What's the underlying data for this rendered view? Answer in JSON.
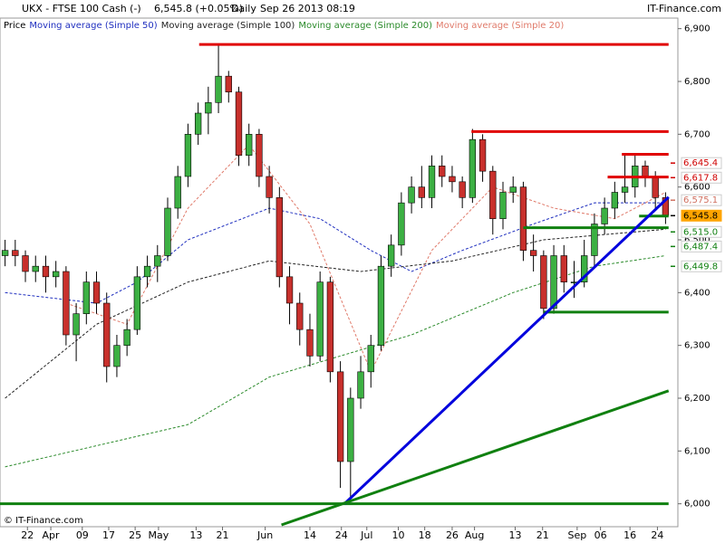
{
  "chart_data": {
    "type": "candlestick",
    "header": {
      "symbol": "UKX - FTSE 100 Cash (-)",
      "price": "6,545.8 (+0.05%)",
      "period": "Daily",
      "date": "Sep 26 2013 08:19",
      "brand": "IT-Finance.com"
    },
    "footer": "© IT-Finance.com",
    "price_name": "Price",
    "up_color": "#3cb043",
    "down_color": "#c8302c",
    "xlim": [
      -0.5,
      65.5
    ],
    "ylim": [
      5960,
      6920
    ],
    "yticks": [
      {
        "value": 6900,
        "label": "6,900"
      },
      {
        "value": 6800,
        "label": "6,800"
      },
      {
        "value": 6700,
        "label": "6,700"
      },
      {
        "value": 6600,
        "label": "6,600"
      },
      {
        "value": 6500,
        "label": "6,500"
      },
      {
        "value": 6400,
        "label": "6,400"
      },
      {
        "value": 6300,
        "label": "6,300"
      },
      {
        "value": 6200,
        "label": "6,200"
      },
      {
        "value": 6100,
        "label": "6,100"
      },
      {
        "value": 6000,
        "label": "6,000"
      }
    ],
    "xticks": [
      {
        "value": 2.2,
        "label": "22"
      },
      {
        "value": 4.5,
        "label": "Apr"
      },
      {
        "value": 7.6,
        "label": "09"
      },
      {
        "value": 10.2,
        "label": "17"
      },
      {
        "value": 12.8,
        "label": "25"
      },
      {
        "value": 15.1,
        "label": "May"
      },
      {
        "value": 18.8,
        "label": "13"
      },
      {
        "value": 21.4,
        "label": "21"
      },
      {
        "value": 25.6,
        "label": "Jun"
      },
      {
        "value": 30,
        "label": "14"
      },
      {
        "value": 33.1,
        "label": "24"
      },
      {
        "value": 35.6,
        "label": "Jul"
      },
      {
        "value": 38.7,
        "label": "10"
      },
      {
        "value": 41.3,
        "label": "18"
      },
      {
        "value": 44,
        "label": "26"
      },
      {
        "value": 46.2,
        "label": "Aug"
      },
      {
        "value": 50.2,
        "label": "13"
      },
      {
        "value": 52.9,
        "label": "21"
      },
      {
        "value": 56.3,
        "label": "Sep"
      },
      {
        "value": 58.6,
        "label": "06"
      },
      {
        "value": 61.5,
        "label": "16"
      },
      {
        "value": 64.2,
        "label": "24"
      }
    ],
    "candles": [
      [
        6470,
        6500,
        6450,
        6480
      ],
      [
        6480,
        6500,
        6450,
        6470
      ],
      [
        6470,
        6480,
        6420,
        6440
      ],
      [
        6440,
        6470,
        6420,
        6450
      ],
      [
        6450,
        6470,
        6400,
        6430
      ],
      [
        6430,
        6460,
        6410,
        6440
      ],
      [
        6440,
        6450,
        6300,
        6320
      ],
      [
        6320,
        6380,
        6270,
        6360
      ],
      [
        6360,
        6440,
        6340,
        6420
      ],
      [
        6420,
        6440,
        6360,
        6380
      ],
      [
        6380,
        6400,
        6230,
        6260
      ],
      [
        6260,
        6320,
        6240,
        6300
      ],
      [
        6300,
        6350,
        6280,
        6330
      ],
      [
        6330,
        6450,
        6320,
        6430
      ],
      [
        6430,
        6470,
        6410,
        6450
      ],
      [
        6450,
        6490,
        6420,
        6470
      ],
      [
        6470,
        6580,
        6460,
        6560
      ],
      [
        6560,
        6640,
        6540,
        6620
      ],
      [
        6620,
        6720,
        6600,
        6700
      ],
      [
        6700,
        6760,
        6680,
        6740
      ],
      [
        6740,
        6790,
        6700,
        6760
      ],
      [
        6760,
        6870,
        6740,
        6810
      ],
      [
        6810,
        6820,
        6760,
        6780
      ],
      [
        6780,
        6790,
        6640,
        6660
      ],
      [
        6660,
        6720,
        6640,
        6700
      ],
      [
        6700,
        6710,
        6600,
        6620
      ],
      [
        6620,
        6640,
        6550,
        6580
      ],
      [
        6580,
        6600,
        6410,
        6430
      ],
      [
        6430,
        6450,
        6340,
        6380
      ],
      [
        6380,
        6400,
        6300,
        6330
      ],
      [
        6330,
        6360,
        6260,
        6280
      ],
      [
        6280,
        6440,
        6270,
        6420
      ],
      [
        6420,
        6430,
        6230,
        6250
      ],
      [
        6250,
        6270,
        6030,
        6080
      ],
      [
        6080,
        6220,
        6010,
        6200
      ],
      [
        6200,
        6280,
        6180,
        6250
      ],
      [
        6250,
        6320,
        6220,
        6300
      ],
      [
        6300,
        6470,
        6290,
        6450
      ],
      [
        6450,
        6510,
        6430,
        6490
      ],
      [
        6490,
        6590,
        6470,
        6570
      ],
      [
        6570,
        6620,
        6550,
        6600
      ],
      [
        6600,
        6640,
        6560,
        6580
      ],
      [
        6580,
        6660,
        6560,
        6640
      ],
      [
        6640,
        6660,
        6600,
        6620
      ],
      [
        6620,
        6640,
        6590,
        6610
      ],
      [
        6610,
        6620,
        6560,
        6580
      ],
      [
        6580,
        6710,
        6570,
        6690
      ],
      [
        6690,
        6700,
        6610,
        6630
      ],
      [
        6630,
        6640,
        6510,
        6540
      ],
      [
        6540,
        6610,
        6520,
        6590
      ],
      [
        6590,
        6620,
        6570,
        6600
      ],
      [
        6600,
        6610,
        6460,
        6480
      ],
      [
        6480,
        6510,
        6440,
        6470
      ],
      [
        6470,
        6480,
        6350,
        6370
      ],
      [
        6370,
        6490,
        6360,
        6470
      ],
      [
        6470,
        6490,
        6400,
        6420
      ],
      [
        6420,
        6460,
        6390,
        6420
      ],
      [
        6420,
        6500,
        6410,
        6470
      ],
      [
        6470,
        6550,
        6450,
        6530
      ],
      [
        6530,
        6580,
        6510,
        6560
      ],
      [
        6560,
        6610,
        6540,
        6590
      ],
      [
        6590,
        6660,
        6570,
        6600
      ],
      [
        6600,
        6660,
        6580,
        6640
      ],
      [
        6640,
        6650,
        6600,
        6620
      ],
      [
        6620,
        6630,
        6560,
        6580
      ],
      [
        6580,
        6590,
        6530,
        6546
      ]
    ],
    "moving_averages": [
      {
        "name": "Moving average (Simple 50)",
        "color": "#1f2fbf",
        "x": [
          0,
          9,
          13,
          18,
          26,
          31,
          36,
          40,
          45,
          52,
          58,
          65
        ],
        "values": [
          6400,
          6380,
          6420,
          6500,
          6560,
          6540,
          6480,
          6440,
          6480,
          6530,
          6570,
          6570
        ]
      },
      {
        "name": "Moving average (Simple 100)",
        "color": "#222222",
        "x": [
          0,
          9,
          18,
          26,
          35,
          44,
          53,
          65
        ],
        "values": [
          6200,
          6340,
          6420,
          6460,
          6440,
          6460,
          6500,
          6520
        ]
      },
      {
        "name": "Moving average (Simple 200)",
        "color": "#2a8a2a",
        "x": [
          0,
          18,
          26,
          40,
          50,
          58,
          65
        ],
        "values": [
          6070,
          6150,
          6240,
          6320,
          6400,
          6450,
          6470
        ]
      },
      {
        "name": "Moving average (Simple 20)",
        "color": "#e07a6a",
        "x": [
          6,
          12,
          18,
          24,
          30,
          36,
          42,
          48,
          54,
          60,
          65
        ],
        "values": [
          6380,
          6340,
          6560,
          6680,
          6530,
          6250,
          6480,
          6600,
          6560,
          6540,
          6590
        ]
      }
    ],
    "levels": [
      {
        "color": "#e00000",
        "x": [
          19.1,
          65.3
        ],
        "values": [
          6870,
          6870
        ]
      },
      {
        "color": "#e00000",
        "x": [
          45.9,
          65.3
        ],
        "values": [
          6705,
          6705
        ]
      },
      {
        "color": "#e00000",
        "x": [
          60.7,
          65.3
        ],
        "values": [
          6662,
          6662
        ]
      },
      {
        "color": "#e00000",
        "x": [
          59.3,
          65.3
        ],
        "values": [
          6619,
          6619
        ]
      },
      {
        "color": "#108010",
        "x": [
          51,
          65.3
        ],
        "values": [
          6523,
          6523
        ]
      },
      {
        "color": "#108010",
        "x": [
          62.4,
          65.3
        ],
        "values": [
          6545,
          6545
        ]
      },
      {
        "color": "#108010",
        "x": [
          53,
          65.3
        ],
        "values": [
          6363,
          6363
        ]
      },
      {
        "color": "#108010",
        "x": [
          -0.5,
          65.3
        ],
        "values": [
          6000,
          6000
        ]
      },
      {
        "color": "#0000dd",
        "x": [
          33.4,
          65.3
        ],
        "values": [
          6000,
          6581
        ]
      },
      {
        "color": "#108010",
        "x": [
          27.2,
          65.3
        ],
        "values": [
          5960,
          6214
        ]
      }
    ],
    "price_labels": [
      {
        "value": 6645.4,
        "label": "6,645.4",
        "color": "#d00000",
        "bg": "#ffffff"
      },
      {
        "value": 6617.8,
        "label": "6,617.8",
        "color": "#d00000",
        "bg": "#ffffff"
      },
      {
        "value": 6575.1,
        "label": "6,575.1",
        "color": "#d07060",
        "bg": "#ffffff"
      },
      {
        "value": 6545.8,
        "label": "6,545.8",
        "color": "#000000",
        "bg": "#ffa500"
      },
      {
        "value": 6515.0,
        "label": "6,515.0",
        "color": "#108010",
        "bg": "#ffffff"
      },
      {
        "value": 6487.4,
        "label": "6,487.4",
        "color": "#108010",
        "bg": "#ffffff"
      },
      {
        "value": 6449.8,
        "label": "6,449.8",
        "color": "#108010",
        "bg": "#ffffff"
      }
    ]
  }
}
